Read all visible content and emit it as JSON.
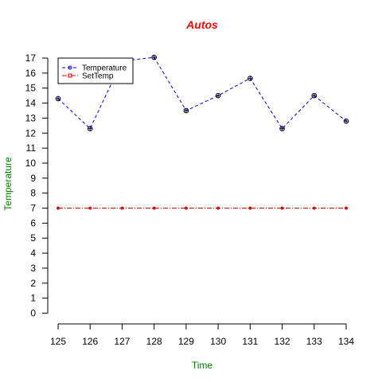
{
  "chart_data": {
    "type": "line",
    "title": "Autos",
    "xlabel": "Time",
    "ylabel": "Temperature",
    "x": [
      125,
      126,
      127,
      128,
      129,
      130,
      131,
      132,
      133,
      134
    ],
    "xlim": [
      125,
      134
    ],
    "ylim": [
      0,
      17
    ],
    "yticks": [
      0,
      1,
      2,
      3,
      4,
      5,
      6,
      7,
      8,
      9,
      10,
      11,
      12,
      13,
      14,
      15,
      16,
      17
    ],
    "grid": false,
    "legend_position": "top-left",
    "series": [
      {
        "name": "Temperature",
        "values": [
          14.3,
          12.3,
          16.8,
          17.05,
          13.5,
          14.5,
          15.65,
          12.3,
          14.5,
          12.8
        ],
        "color": "#0000cc",
        "line_style": "dashed",
        "marker": "open-circle-plus"
      },
      {
        "name": "SetTemp",
        "values": [
          7,
          7,
          7,
          7,
          7,
          7,
          7,
          7,
          7,
          7
        ],
        "color": "#dd0000",
        "line_style": "dash-dot",
        "marker": "filled-dot"
      }
    ]
  },
  "colors": {
    "title": "#ff0000",
    "axis_labels": "#008000",
    "axes": "#000000"
  }
}
